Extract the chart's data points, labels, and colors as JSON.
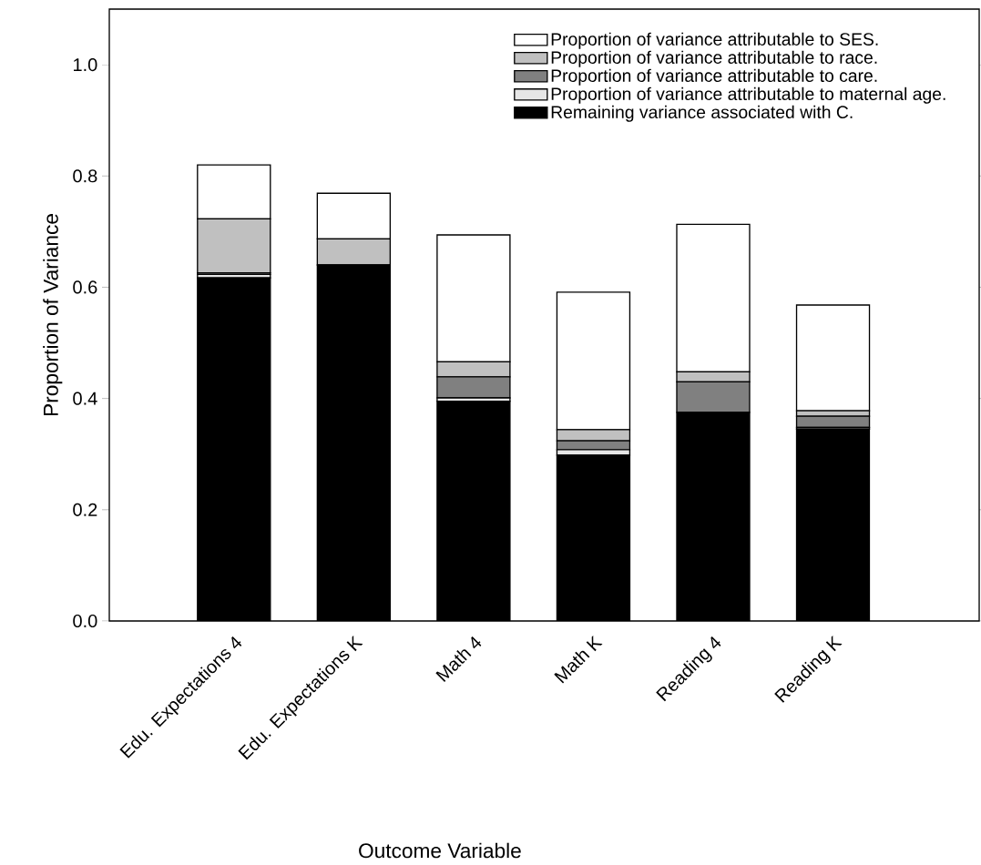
{
  "chart_data": {
    "type": "bar",
    "stacked": true,
    "xlabel": "Outcome Variable",
    "ylabel": "Proportion of Variance",
    "categories": [
      "Edu. Expectations 4",
      "Edu. Expectations K",
      "Math 4",
      "Math K",
      "Reading 4",
      "Reading K"
    ],
    "series": [
      {
        "name": "Remaining variance associated with C.",
        "color": "#000000",
        "values": [
          0.617,
          0.64,
          0.395,
          0.298,
          0.375,
          0.345
        ]
      },
      {
        "name": "Proportion of variance attributable to maternal age.",
        "color": "#e6e6e6",
        "values": [
          0.006,
          0,
          0.006,
          0.01,
          0,
          0.003
        ]
      },
      {
        "name": "Proportion of variance attributable to care.",
        "color": "#808080",
        "values": [
          0.003,
          0,
          0.038,
          0.016,
          0.055,
          0.02
        ]
      },
      {
        "name": "Proportion of variance attributable to race.",
        "color": "#c0c0c0",
        "values": [
          0.097,
          0.047,
          0.027,
          0.02,
          0.018,
          0.01
        ]
      },
      {
        "name": "Proportion of variance attributable to SES.",
        "color": "#ffffff",
        "values": [
          0.097,
          0.082,
          0.228,
          0.247,
          0.265,
          0.19
        ]
      }
    ],
    "ylim": [
      0,
      1.1
    ],
    "yticks": [
      {
        "value": 0,
        "label": "0.0"
      },
      {
        "value": 0.2,
        "label": "0.2"
      },
      {
        "value": 0.4,
        "label": "0.4"
      },
      {
        "value": 0.6,
        "label": "0.6"
      },
      {
        "value": 0.8,
        "label": "0.8"
      },
      {
        "value": 1.0,
        "label": "1.0"
      }
    ],
    "legend": "top right",
    "grid": false
  }
}
